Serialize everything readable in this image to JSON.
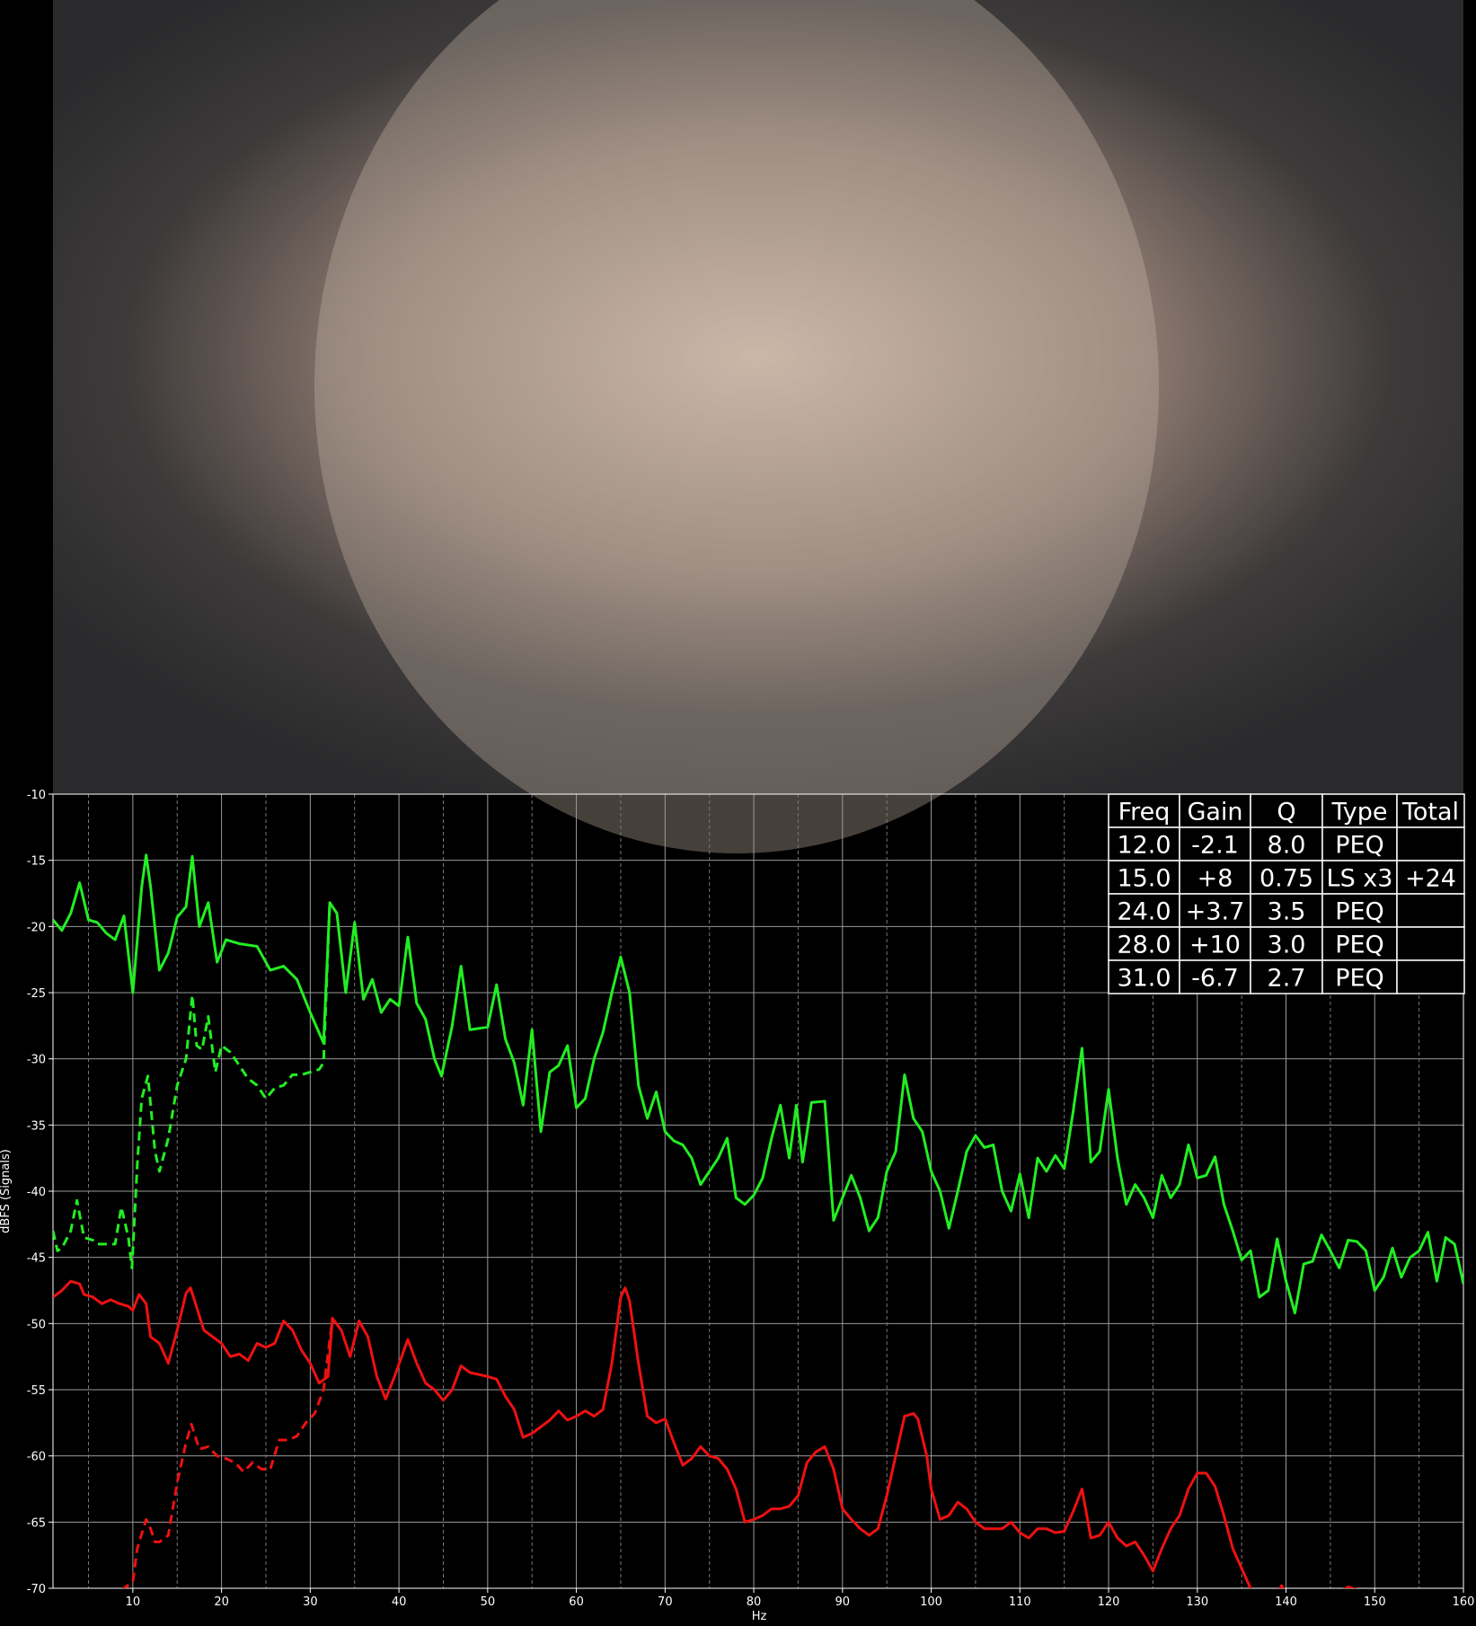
{
  "chart_data": {
    "type": "line",
    "xlabel": "Hz",
    "ylabel": "dBFS (Signals)",
    "xlim": [
      1,
      160
    ],
    "ylim": [
      -70,
      -10
    ],
    "xticks": [
      10,
      20,
      30,
      40,
      50,
      60,
      70,
      80,
      90,
      100,
      110,
      120,
      130,
      140,
      150,
      160
    ],
    "xminorticks": [
      5,
      15,
      25,
      35,
      45,
      55,
      65,
      75,
      85,
      95,
      105,
      115,
      125,
      135,
      145,
      155
    ],
    "yticks": [
      -10,
      -15,
      -20,
      -25,
      -30,
      -35,
      -40,
      -45,
      -50,
      -55,
      -60,
      -65,
      -70
    ],
    "grid": true,
    "series": [
      {
        "color": "#22ee22",
        "dashed": false,
        "x": [
          1,
          2,
          3,
          4,
          5,
          6,
          7,
          8,
          9,
          10,
          11,
          11.5,
          12,
          13,
          14,
          15,
          16,
          16.7,
          17.5,
          18.5,
          19.5,
          20.5,
          22,
          24,
          25.5,
          27,
          28.5,
          30,
          31.5,
          32.2,
          33,
          34,
          35,
          36,
          37,
          38,
          39,
          40,
          41,
          42,
          43,
          44,
          44.8,
          46,
          47,
          48,
          50,
          51,
          52,
          53,
          54,
          55,
          56,
          57,
          58,
          59,
          60,
          61,
          62,
          63,
          64,
          65,
          66,
          67,
          68,
          69,
          70,
          71,
          72,
          73,
          74,
          75,
          76,
          77,
          78,
          79,
          80,
          81,
          82,
          83,
          84,
          84.8,
          85.5,
          86.5,
          88,
          89,
          90,
          91,
          92,
          93,
          94,
          95,
          96,
          97,
          98,
          99,
          100,
          101,
          102,
          103,
          104,
          105,
          106,
          107,
          108,
          109,
          110,
          111,
          112,
          113,
          114,
          115,
          116,
          117,
          118,
          119,
          120,
          121,
          122,
          123,
          124,
          125,
          126,
          127,
          128,
          129,
          130,
          131,
          132,
          133,
          134,
          135,
          136,
          137,
          138,
          139,
          140,
          141,
          142,
          143,
          144,
          145,
          146,
          147,
          148,
          149,
          150,
          151,
          152,
          153,
          154,
          155,
          156,
          157,
          158,
          159,
          160
        ],
        "values": [
          -19.5,
          -20.3,
          -19,
          -16.7,
          -19.5,
          -19.7,
          -20.5,
          -21,
          -19.2,
          -25,
          -17,
          -14.6,
          -17,
          -23.3,
          -22,
          -19.3,
          -18.5,
          -14.7,
          -20,
          -18.2,
          -22.7,
          -21,
          -21.3,
          -21.5,
          -23.3,
          -23,
          -24,
          -26.5,
          -28.8,
          -18.2,
          -19,
          -25,
          -19.7,
          -25.5,
          -24,
          -26.5,
          -25.5,
          -26,
          -20.8,
          -25.8,
          -27,
          -30,
          -31.3,
          -27.5,
          -23,
          -27.8,
          -27.6,
          -24.4,
          -28.5,
          -30.3,
          -33.5,
          -27.8,
          -35.5,
          -31,
          -30.5,
          -29,
          -33.7,
          -33,
          -30,
          -28,
          -25,
          -22.3,
          -25,
          -32,
          -34.5,
          -32.5,
          -35.5,
          -36.2,
          -36.5,
          -37.5,
          -39.5,
          -38.5,
          -37.5,
          -36,
          -40.5,
          -41,
          -40.3,
          -39,
          -36,
          -33.5,
          -37.5,
          -33.5,
          -37.8,
          -33.3,
          -33.2,
          -42.2,
          -40.5,
          -38.8,
          -40.5,
          -43,
          -42,
          -38.5,
          -37,
          -31.2,
          -34.5,
          -35.5,
          -38.5,
          -40,
          -42.8,
          -40,
          -37,
          -35.8,
          -36.7,
          -36.5,
          -40,
          -41.5,
          -38.7,
          -42,
          -37.5,
          -38.5,
          -37.3,
          -38.3,
          -34,
          -29.2,
          -37.8,
          -37,
          -32.3,
          -37.5,
          -41,
          -39.5,
          -40.5,
          -42,
          -38.8,
          -40.5,
          -39.5,
          -36.5,
          -39,
          -38.8,
          -37.4,
          -41,
          -43,
          -45.2,
          -44.5,
          -48,
          -47.5,
          -43.6,
          -46.8,
          -49.2,
          -45.5,
          -45.3,
          -43.3,
          -44.5,
          -45.8,
          -43.7,
          -43.8,
          -44.5,
          -47.5,
          -46.5,
          -44.3,
          -46.5,
          -45,
          -44.5,
          -43.1,
          -46.8,
          -43.5,
          -44,
          -47
        ]
      },
      {
        "color": "#22ee22",
        "dashed": true,
        "x": [
          1,
          1.5,
          2,
          3,
          3.7,
          4.5,
          5.5,
          6,
          7,
          8,
          8.7,
          9.5,
          9.9,
          10.5,
          11,
          11.7,
          12.5,
          13,
          14,
          15,
          16,
          16.7,
          17.2,
          17.8,
          18.5,
          19.3,
          20,
          21,
          22,
          23,
          24,
          25,
          26,
          27,
          28,
          29,
          30,
          31,
          31.5,
          32.2
        ],
        "values": [
          -43,
          -44.5,
          -44.3,
          -43,
          -40.7,
          -43.5,
          -43.7,
          -44,
          -44,
          -44,
          -41.2,
          -43.5,
          -45.8,
          -38,
          -33,
          -31.3,
          -37,
          -38.5,
          -36,
          -32,
          -30,
          -25.2,
          -29,
          -29.3,
          -26.8,
          -31,
          -29,
          -29.5,
          -30.5,
          -31.5,
          -32,
          -33,
          -32.2,
          -32,
          -31.2,
          -31.2,
          -31,
          -30.8,
          -30.3,
          -18.2
        ]
      },
      {
        "color": "#ee1111",
        "dashed": false,
        "x": [
          1,
          2,
          3,
          4,
          4.5,
          5.5,
          6.5,
          7.5,
          8.5,
          9.5,
          10,
          10.7,
          11.5,
          12,
          13,
          14,
          15,
          16,
          16.5,
          17.3,
          18,
          19,
          20,
          21,
          22,
          23,
          24,
          25,
          26,
          27,
          28,
          29,
          30,
          31,
          32,
          32.5,
          33.5,
          34.5,
          35.5,
          36.5,
          37.5,
          38.5,
          39.5,
          41,
          42,
          43,
          44,
          45,
          46,
          47,
          48,
          50,
          51,
          52,
          53,
          54,
          55,
          56,
          57,
          58,
          59,
          60,
          61,
          62,
          63,
          64,
          65,
          65.5,
          66,
          67,
          68,
          69,
          70,
          71,
          72,
          73,
          74,
          75,
          76,
          77,
          78,
          79,
          80,
          81,
          82,
          83,
          84,
          85,
          86,
          87,
          88,
          89,
          90,
          91,
          92,
          93,
          94,
          95,
          96,
          97,
          98,
          98.5,
          99.5,
          100,
          101,
          102,
          103,
          104,
          105,
          106,
          107,
          108,
          109,
          110,
          111,
          112,
          113,
          114,
          115,
          116,
          117,
          118,
          119,
          120,
          121,
          122,
          123,
          124,
          125,
          126,
          127,
          128,
          129,
          130,
          131,
          132,
          133,
          134,
          135,
          136,
          137,
          139,
          139.5,
          140,
          141,
          143,
          144.5,
          146,
          147,
          148,
          150,
          160
        ],
        "values": [
          -48,
          -47.5,
          -46.8,
          -47,
          -47.8,
          -48,
          -48.5,
          -48.2,
          -48.5,
          -48.7,
          -49,
          -47.8,
          -48.5,
          -51,
          -51.5,
          -53,
          -50.5,
          -47.7,
          -47.3,
          -49,
          -50.5,
          -51,
          -51.5,
          -52.5,
          -52.3,
          -52.8,
          -51.5,
          -51.8,
          -51.5,
          -49.8,
          -50.5,
          -52,
          -53,
          -54.5,
          -54,
          -49.6,
          -50.5,
          -52.5,
          -49.8,
          -51,
          -54,
          -55.7,
          -54,
          -51.2,
          -53,
          -54.5,
          -55,
          -55.8,
          -55,
          -53.2,
          -53.7,
          -54,
          -54.2,
          -55.5,
          -56.5,
          -58.6,
          -58.3,
          -57.8,
          -57.3,
          -56.6,
          -57.3,
          -57,
          -56.6,
          -57,
          -56.5,
          -53,
          -48,
          -47.3,
          -48.3,
          -53,
          -57,
          -57.5,
          -57.2,
          -59,
          -60.7,
          -60.2,
          -59.3,
          -60,
          -60.2,
          -61,
          -62.5,
          -65,
          -64.8,
          -64.5,
          -64,
          -64,
          -63.8,
          -63,
          -60.5,
          -59.7,
          -59.3,
          -61,
          -64,
          -64.8,
          -65.5,
          -66,
          -65.5,
          -63,
          -60,
          -57,
          -56.8,
          -57.2,
          -60,
          -62.5,
          -64.8,
          -64.5,
          -63.5,
          -64,
          -65,
          -65.5,
          -65.5,
          -65.5,
          -65,
          -65.8,
          -66.2,
          -65.5,
          -65.5,
          -65.8,
          -65.7,
          -64.2,
          -62.5,
          -66.2,
          -66,
          -65,
          -66.2,
          -66.8,
          -66.5,
          -67.5,
          -68.7,
          -67,
          -65.5,
          -64.5,
          -62.5,
          -61.3,
          -61.3,
          -62.3,
          -64.5,
          -67,
          -68.5,
          -70,
          -71.5,
          -70.5,
          -69.8,
          -70.3,
          -72,
          -71,
          -70.2,
          -70.3,
          -69.9,
          -70.1,
          -72,
          -73
        ]
      },
      {
        "color": "#ee1111",
        "dashed": true,
        "x": [
          7,
          8,
          9,
          10,
          10.5,
          11.5,
          12,
          12.5,
          13,
          14,
          15,
          16,
          16.6,
          17.5,
          18.5,
          19.5,
          20.5,
          21.5,
          22.5,
          23.5,
          24.5,
          25.5,
          26.5,
          27.5,
          28.5,
          29.5,
          30.5,
          31.5,
          32.5
        ],
        "values": [
          -72,
          -71,
          -70,
          -69.5,
          -67,
          -64.8,
          -65.5,
          -66.5,
          -66.5,
          -66,
          -62,
          -59,
          -57.6,
          -59.5,
          -59.3,
          -60,
          -60.2,
          -60.5,
          -61.2,
          -60.5,
          -61,
          -61,
          -58.8,
          -58.8,
          -58.5,
          -57.5,
          -56.8,
          -55,
          -49.6
        ]
      }
    ],
    "table": {
      "columns": [
        "Freq",
        "Gain",
        "Q",
        "Type",
        "Total"
      ],
      "rows": [
        [
          "12.0",
          "-2.1",
          "8.0",
          "PEQ",
          null
        ],
        [
          "15.0",
          "+8",
          "0.75",
          "LS x3",
          "+24"
        ],
        [
          "24.0",
          "+3.7",
          "3.5",
          "PEQ",
          null
        ],
        [
          "28.0",
          "+10",
          "3.0",
          "PEQ",
          null
        ],
        [
          "31.0",
          "-6.7",
          "2.7",
          "PEQ",
          null
        ]
      ]
    }
  }
}
